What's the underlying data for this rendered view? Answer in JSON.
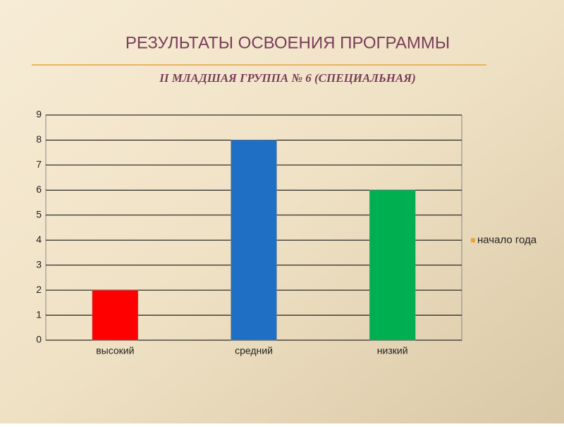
{
  "chart_data": {
    "type": "bar",
    "title": "РЕЗУЛЬТАТЫ ОСВОЕНИЯ ПРОГРАММЫ",
    "subtitle": "II МЛАДШАЯ ГРУППА № 6 (СПЕЦИАЛЬНАЯ)",
    "categories": [
      "высокий",
      "средний",
      "низкий"
    ],
    "series": [
      {
        "name": "начало года",
        "color": "#e8a33a",
        "values": [
          2,
          8,
          6
        ],
        "colors": [
          "#ff0000",
          "#1f6fc5",
          "#00b050"
        ]
      }
    ],
    "ylim": [
      0,
      9
    ],
    "yticks": [
      0,
      1,
      2,
      3,
      4,
      5,
      6,
      7,
      8,
      9
    ],
    "grid": true,
    "legend": "right"
  }
}
